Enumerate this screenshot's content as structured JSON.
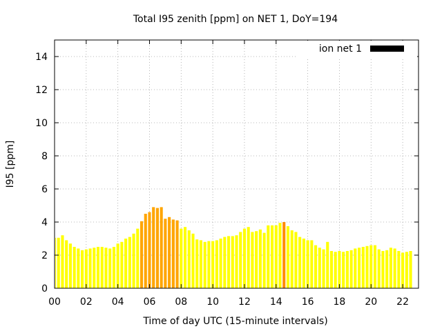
{
  "chart_data": {
    "type": "bar",
    "title": "Total I95 zenith [ppm] on NET 1, DoY=194",
    "xlabel": "Time of day UTC (15-minute intervals)",
    "ylabel": "I95 [ppm]",
    "xlim": [
      0,
      23
    ],
    "ylim": [
      0,
      15
    ],
    "x_ticks": [
      "00",
      "02",
      "04",
      "06",
      "08",
      "10",
      "12",
      "14",
      "16",
      "18",
      "20",
      "22"
    ],
    "x_tick_values": [
      0,
      2,
      4,
      6,
      8,
      10,
      12,
      14,
      16,
      18,
      20,
      22
    ],
    "y_ticks": [
      "0",
      "2",
      "4",
      "6",
      "8",
      "10",
      "12",
      "14"
    ],
    "y_tick_values": [
      0,
      2,
      4,
      6,
      8,
      10,
      12,
      14
    ],
    "grid": true,
    "legend": {
      "placement": "top-right",
      "label": "ion net 1",
      "color": "#000000"
    },
    "colors": {
      "low": "#ffff00",
      "mid": "#ffa500",
      "high": "#ff8c00"
    },
    "interval_hours": 0.25,
    "series": [
      {
        "values": [
          3.05,
          3.05,
          3.2,
          2.9,
          2.7,
          2.5,
          2.4,
          2.3,
          2.35,
          2.4,
          2.45,
          2.5,
          2.5,
          2.45,
          2.4,
          2.5,
          2.7,
          2.8,
          3.0,
          3.1,
          3.3,
          3.6,
          4.05,
          4.5,
          4.6,
          4.9,
          4.85,
          4.9,
          4.2,
          4.3,
          4.15,
          4.1,
          3.6,
          3.7,
          3.5,
          3.3,
          2.95,
          2.9,
          2.8,
          2.85,
          2.85,
          2.9,
          3.0,
          3.1,
          3.15,
          3.15,
          3.2,
          3.4,
          3.6,
          3.7,
          3.4,
          3.45,
          3.55,
          3.35,
          3.8,
          3.8,
          3.8,
          3.95,
          4.0,
          3.75,
          3.5,
          3.4,
          3.1,
          3.0,
          2.9,
          2.9,
          2.6,
          2.45,
          2.35,
          2.8,
          2.25,
          2.2,
          2.25,
          2.2,
          2.25,
          2.3,
          2.4,
          2.45,
          2.5,
          2.55,
          2.6,
          2.6,
          2.35,
          2.25,
          2.3,
          2.45,
          2.4,
          2.25,
          2.15,
          2.2,
          2.25
        ],
        "level": [
          "low",
          "low",
          "low",
          "low",
          "low",
          "low",
          "low",
          "low",
          "low",
          "low",
          "low",
          "low",
          "low",
          "low",
          "low",
          "low",
          "low",
          "low",
          "low",
          "low",
          "low",
          "low",
          "mid",
          "mid",
          "mid",
          "mid",
          "mid",
          "mid",
          "mid",
          "mid",
          "mid",
          "mid",
          "low",
          "low",
          "low",
          "low",
          "low",
          "low",
          "low",
          "low",
          "low",
          "low",
          "low",
          "low",
          "low",
          "low",
          "low",
          "low",
          "low",
          "low",
          "low",
          "low",
          "low",
          "low",
          "low",
          "low",
          "low",
          "low",
          "high",
          "low",
          "low",
          "low",
          "low",
          "low",
          "low",
          "low",
          "low",
          "low",
          "low",
          "low",
          "low",
          "low",
          "low",
          "low",
          "low",
          "low",
          "low",
          "low",
          "low",
          "low",
          "low",
          "low",
          "low",
          "low",
          "low",
          "low",
          "low",
          "low",
          "low",
          "low",
          "low"
        ]
      }
    ]
  }
}
